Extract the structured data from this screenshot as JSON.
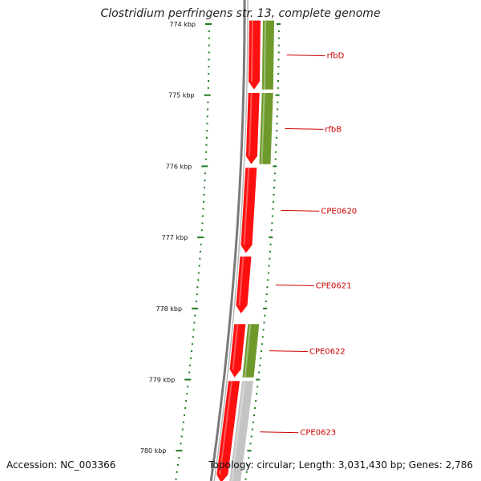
{
  "title": "Clostridium perfringens str. 13, complete genome",
  "footer": {
    "accession": "Accession: NC_003366",
    "topology": "Topology: circular; Length: 3,031,430 bp; Genes: 2,786"
  },
  "ticks": [
    {
      "label": "774 kbp",
      "kbp": 774
    },
    {
      "label": "775 kbp",
      "kbp": 775
    },
    {
      "label": "776 kbp",
      "kbp": 776
    },
    {
      "label": "777 kbp",
      "kbp": 777
    },
    {
      "label": "778 kbp",
      "kbp": 778
    },
    {
      "label": "779 kbp",
      "kbp": 779
    },
    {
      "label": "780 kbp",
      "kbp": 780
    }
  ],
  "genes": [
    {
      "label": "rfbD",
      "start_kbp": 773.95,
      "end_kbp": 774.92,
      "cog_track": "green"
    },
    {
      "label": "rfbB",
      "start_kbp": 774.97,
      "end_kbp": 775.97,
      "cog_track": "green"
    },
    {
      "label": "CPE0620",
      "start_kbp": 776.02,
      "end_kbp": 777.22,
      "cog_track": "none"
    },
    {
      "label": "CPE0621",
      "start_kbp": 777.27,
      "end_kbp": 778.07,
      "cog_track": "none"
    },
    {
      "label": "CPE0622",
      "start_kbp": 778.22,
      "end_kbp": 778.97,
      "cog_track": "green"
    },
    {
      "label": "CPE0623",
      "start_kbp": 779.02,
      "end_kbp": 780.45,
      "cog_track": "gray"
    }
  ],
  "colors": {
    "gene": "#ff1010",
    "cog_green": "#6e9a2c",
    "cog_gray": "#c4c4c4",
    "backbone": "#7a7a7a",
    "tick": "#1e7a1e",
    "label": "#cc0000"
  }
}
